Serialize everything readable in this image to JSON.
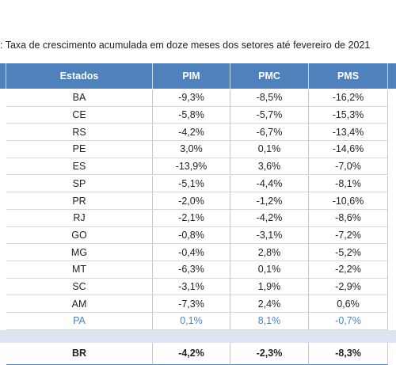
{
  "title": ": Taxa de crescimento acumulada em doze meses dos setores até fevereiro de 2021",
  "table": {
    "header": [
      "Estados",
      "PIM",
      "PMC",
      "PMS"
    ],
    "rows": [
      [
        "BA",
        "-9,3%",
        "-8,5%",
        "-16,2%"
      ],
      [
        "CE",
        "-5,8%",
        "-5,7%",
        "-15,3%"
      ],
      [
        "RS",
        "-4,2%",
        "-6,7%",
        "-13,4%"
      ],
      [
        "PE",
        "3,0%",
        "0,1%",
        "-14,6%"
      ],
      [
        "ES",
        "-13,9%",
        "3,6%",
        "-7,0%"
      ],
      [
        "SP",
        "-5,1%",
        "-4,4%",
        "-8,1%"
      ],
      [
        "PR",
        "-2,0%",
        "-1,2%",
        "-10,6%"
      ],
      [
        "RJ",
        "-2,1%",
        "-4,2%",
        "-8,6%"
      ],
      [
        "GO",
        "-0,8%",
        "-3,1%",
        "-7,2%"
      ],
      [
        "MG",
        "-0,4%",
        "2,8%",
        "-5,2%"
      ],
      [
        "MT",
        "-6,3%",
        "0,1%",
        "-2,2%"
      ],
      [
        "SC",
        "-3,1%",
        "1,9%",
        "-2,9%"
      ],
      [
        "AM",
        "-7,3%",
        "2,4%",
        "0,6%"
      ],
      [
        "PA",
        "0,1%",
        "8,1%",
        "-0,7%"
      ]
    ],
    "total": [
      "BR",
      "-4,2%",
      "-2,3%",
      "-8,3%"
    ]
  }
}
